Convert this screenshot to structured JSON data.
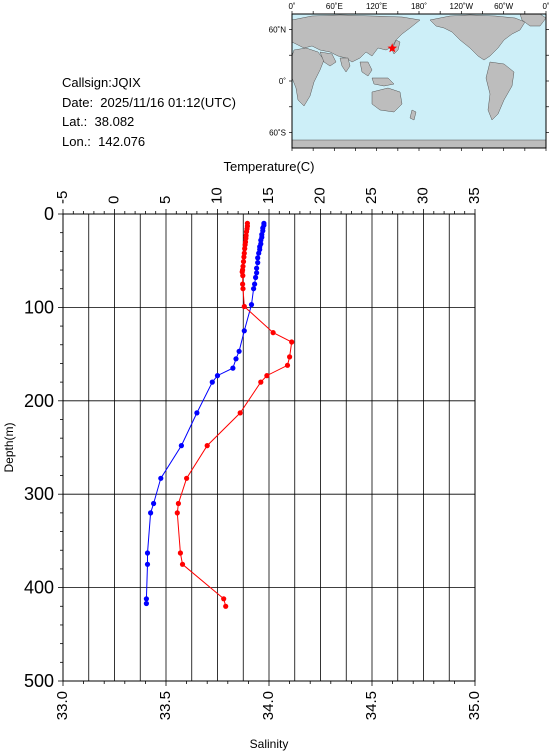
{
  "info": {
    "callsign": "Callsign:JQIX",
    "date": "Date:  2025/11/16 01:12(UTC)",
    "lat": "Lat.:  38.082",
    "lon": "Lon.:  142.076"
  },
  "map": {
    "top_labels": [
      "0˚",
      "60˚E",
      "120˚E",
      "180˚",
      "120˚W",
      "60˚W",
      "0˚"
    ],
    "left_labels": [
      "60˚N",
      "0˚",
      "60˚S"
    ],
    "ocean_color": "#cdeff8",
    "land_color": "#bdbdbd",
    "marker_color": "#ff0000",
    "marker": {
      "lon": 142.076,
      "lat": 38.082
    }
  },
  "chart_data": {
    "type": "scatter",
    "top_axis": {
      "title": "Temperature(C)",
      "range": [
        -5,
        35
      ],
      "ticks": [
        "-5",
        "0",
        "5",
        "10",
        "15",
        "20",
        "25",
        "30",
        "35"
      ]
    },
    "bottom_axis": {
      "title": "Salinity",
      "range": [
        33.0,
        35.0
      ],
      "ticks": [
        "33.0",
        "33.5",
        "34.0",
        "34.5",
        "35.0"
      ]
    },
    "y_axis": {
      "title": "Depth(m)",
      "range": [
        0,
        500
      ],
      "inverted": true,
      "ticks": [
        "0",
        "100",
        "200",
        "300",
        "400",
        "500"
      ]
    },
    "grid": true,
    "series": [
      {
        "axis": "temperature",
        "color": "#0000ff",
        "points": [
          {
            "x": 14.5,
            "y": 10
          },
          {
            "x": 14.5,
            "y": 12
          },
          {
            "x": 14.4,
            "y": 15
          },
          {
            "x": 14.4,
            "y": 18
          },
          {
            "x": 14.3,
            "y": 22
          },
          {
            "x": 14.3,
            "y": 25
          },
          {
            "x": 14.2,
            "y": 28
          },
          {
            "x": 14.2,
            "y": 32
          },
          {
            "x": 14.1,
            "y": 35
          },
          {
            "x": 14.1,
            "y": 38
          },
          {
            "x": 14.0,
            "y": 42
          },
          {
            "x": 13.9,
            "y": 47
          },
          {
            "x": 13.9,
            "y": 52
          },
          {
            "x": 13.8,
            "y": 58
          },
          {
            "x": 13.8,
            "y": 63
          },
          {
            "x": 13.7,
            "y": 68
          },
          {
            "x": 13.6,
            "y": 75
          },
          {
            "x": 13.5,
            "y": 80
          },
          {
            "x": 13.3,
            "y": 97
          },
          {
            "x": 12.6,
            "y": 125
          },
          {
            "x": 12.1,
            "y": 147
          },
          {
            "x": 11.8,
            "y": 155
          },
          {
            "x": 11.5,
            "y": 165
          },
          {
            "x": 10.0,
            "y": 173
          },
          {
            "x": 9.5,
            "y": 180
          },
          {
            "x": 8.0,
            "y": 213
          },
          {
            "x": 6.5,
            "y": 248
          },
          {
            "x": 4.5,
            "y": 283
          },
          {
            "x": 3.8,
            "y": 310
          },
          {
            "x": 3.5,
            "y": 320
          },
          {
            "x": 3.2,
            "y": 363
          },
          {
            "x": 3.2,
            "y": 375
          },
          {
            "x": 3.1,
            "y": 412
          },
          {
            "x": 3.1,
            "y": 417
          }
        ]
      },
      {
        "axis": "salinity",
        "color": "#ff0000",
        "points": [
          {
            "x": 33.895,
            "y": 10
          },
          {
            "x": 33.895,
            "y": 13
          },
          {
            "x": 33.893,
            "y": 16
          },
          {
            "x": 33.891,
            "y": 19
          },
          {
            "x": 33.889,
            "y": 23
          },
          {
            "x": 33.888,
            "y": 26
          },
          {
            "x": 33.886,
            "y": 30
          },
          {
            "x": 33.884,
            "y": 33
          },
          {
            "x": 33.882,
            "y": 37
          },
          {
            "x": 33.88,
            "y": 42
          },
          {
            "x": 33.878,
            "y": 46
          },
          {
            "x": 33.876,
            "y": 51
          },
          {
            "x": 33.874,
            "y": 56
          },
          {
            "x": 33.872,
            "y": 60
          },
          {
            "x": 33.87,
            "y": 62
          },
          {
            "x": 33.873,
            "y": 66
          },
          {
            "x": 33.872,
            "y": 75
          },
          {
            "x": 33.874,
            "y": 80
          },
          {
            "x": 33.88,
            "y": 99
          },
          {
            "x": 34.02,
            "y": 127
          },
          {
            "x": 34.11,
            "y": 137
          },
          {
            "x": 34.1,
            "y": 153
          },
          {
            "x": 34.09,
            "y": 162
          },
          {
            "x": 33.99,
            "y": 173
          },
          {
            "x": 33.96,
            "y": 180
          },
          {
            "x": 33.86,
            "y": 213
          },
          {
            "x": 33.7,
            "y": 248
          },
          {
            "x": 33.6,
            "y": 283
          },
          {
            "x": 33.56,
            "y": 310
          },
          {
            "x": 33.555,
            "y": 320
          },
          {
            "x": 33.57,
            "y": 363
          },
          {
            "x": 33.58,
            "y": 375
          },
          {
            "x": 33.78,
            "y": 412
          },
          {
            "x": 33.79,
            "y": 420
          }
        ]
      }
    ]
  }
}
